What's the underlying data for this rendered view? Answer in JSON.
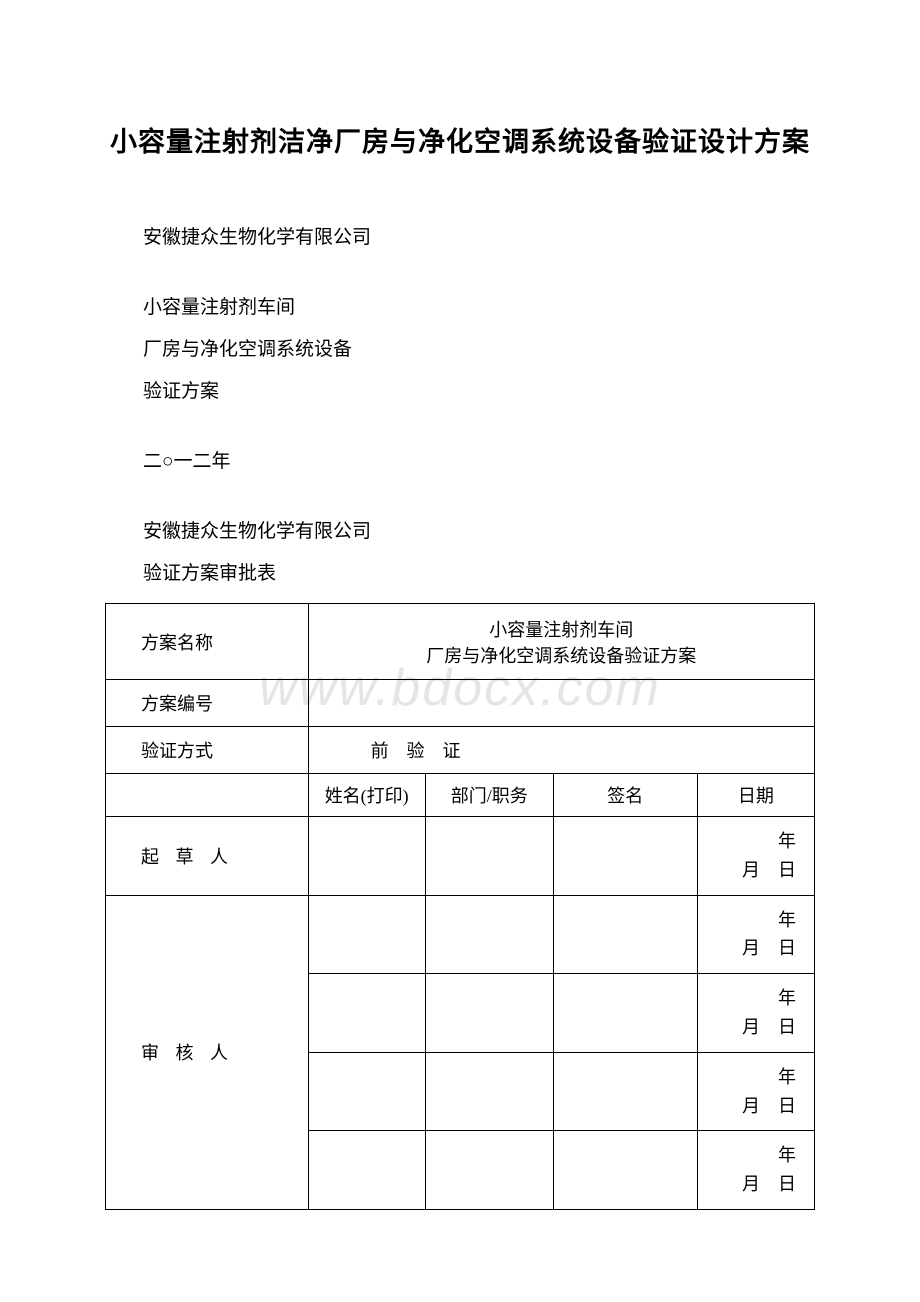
{
  "title": "小容量注射剂洁净厂房与净化空调系统设备验证设计方案",
  "lines": {
    "company1": "安徽捷众生物化学有限公司",
    "workshop": "小容量注射剂车间",
    "equipment": "厂房与净化空调系统设备",
    "plan": "验证方案",
    "year": "二○一二年",
    "company2": "安徽捷众生物化学有限公司",
    "approval_title": "验证方案审批表"
  },
  "table": {
    "plan_name_label": "方案名称",
    "plan_name_line1": "小容量注射剂车间",
    "plan_name_line2": "厂房与净化空调系统设备验证方案",
    "plan_no_label": "方案编号",
    "plan_no_value": "",
    "verify_method_label": "验证方式",
    "verify_method_value": "前　验　证",
    "col_name": "姓名(打印)",
    "col_dept": "部门/职务",
    "col_sign": "签名",
    "col_date": "日期",
    "drafter_label": "起 草 人",
    "reviewer_label": "审 核 人",
    "date_tpl_line1": "年",
    "date_tpl_line2": "月　日"
  },
  "watermark": "www.bdocx.com",
  "colors": {
    "text": "#000000",
    "border": "#000000",
    "background": "#ffffff",
    "watermark": "rgba(180,180,180,0.35)"
  }
}
